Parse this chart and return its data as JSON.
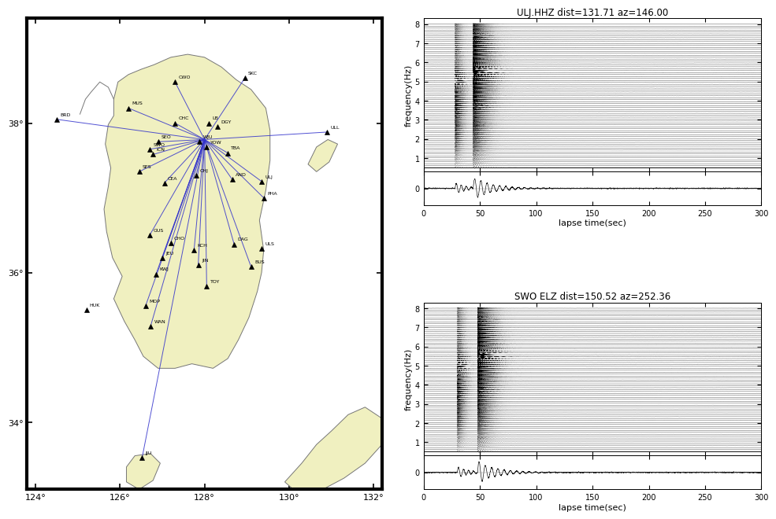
{
  "map_xlim": [
    123.8,
    132.2
  ],
  "map_ylim": [
    33.1,
    39.4
  ],
  "map_xticks": [
    124,
    126,
    128,
    130,
    132
  ],
  "map_yticks": [
    34,
    36,
    38
  ],
  "map_bg_color": "#f0f0c0",
  "land_color": "#f0f0c0",
  "epicenter": [
    128.0,
    37.78
  ],
  "stations": [
    {
      "name": "BRD",
      "lon": 124.5,
      "lat": 38.05
    },
    {
      "name": "MUS",
      "lon": 126.2,
      "lat": 38.2
    },
    {
      "name": "CWO",
      "lon": 127.3,
      "lat": 38.55
    },
    {
      "name": "SKC",
      "lon": 128.95,
      "lat": 38.6
    },
    {
      "name": "CHC",
      "lon": 127.3,
      "lat": 38.0
    },
    {
      "name": "LB",
      "lon": 128.1,
      "lat": 38.0
    },
    {
      "name": "DGY",
      "lon": 128.3,
      "lat": 37.95
    },
    {
      "name": "SEO",
      "lon": 126.9,
      "lat": 37.75
    },
    {
      "name": "SWO",
      "lon": 126.7,
      "lat": 37.65
    },
    {
      "name": "ICN",
      "lon": 126.78,
      "lat": 37.58
    },
    {
      "name": "WJU",
      "lon": 127.88,
      "lat": 37.75
    },
    {
      "name": "YOW",
      "lon": 128.05,
      "lat": 37.68
    },
    {
      "name": "TBA",
      "lon": 128.55,
      "lat": 37.6
    },
    {
      "name": "SES",
      "lon": 126.45,
      "lat": 37.35
    },
    {
      "name": "CEA",
      "lon": 127.05,
      "lat": 37.2
    },
    {
      "name": "CHJ",
      "lon": 127.8,
      "lat": 37.3
    },
    {
      "name": "AND",
      "lon": 128.65,
      "lat": 37.25
    },
    {
      "name": "ULJ",
      "lon": 129.35,
      "lat": 37.22
    },
    {
      "name": "PHA",
      "lon": 129.4,
      "lat": 37.0
    },
    {
      "name": "GUS",
      "lon": 126.7,
      "lat": 36.5
    },
    {
      "name": "CHO",
      "lon": 127.2,
      "lat": 36.4
    },
    {
      "name": "KCH",
      "lon": 127.75,
      "lat": 36.3
    },
    {
      "name": "DAG",
      "lon": 128.7,
      "lat": 36.38
    },
    {
      "name": "ULS",
      "lon": 129.35,
      "lat": 36.32
    },
    {
      "name": "JEU",
      "lon": 127.0,
      "lat": 36.2
    },
    {
      "name": "JIN",
      "lon": 127.85,
      "lat": 36.1
    },
    {
      "name": "BUS",
      "lon": 129.1,
      "lat": 36.08
    },
    {
      "name": "KWJ",
      "lon": 126.85,
      "lat": 35.98
    },
    {
      "name": "TOY",
      "lon": 128.05,
      "lat": 35.82
    },
    {
      "name": "HUK",
      "lon": 125.2,
      "lat": 35.5
    },
    {
      "name": "MOP",
      "lon": 126.6,
      "lat": 35.55
    },
    {
      "name": "WAN",
      "lon": 126.72,
      "lat": 35.28
    },
    {
      "name": "JJU",
      "lon": 126.52,
      "lat": 33.52
    },
    {
      "name": "ULL",
      "lon": 130.9,
      "lat": 37.88
    }
  ],
  "line_stations": [
    "BRD",
    "MUS",
    "CHC",
    "SEO",
    "SWO",
    "CEA",
    "CHJ",
    "GUS",
    "JEU",
    "KWJ",
    "MOP",
    "WAN",
    "JJU",
    "ULL",
    "YOW",
    "CHO",
    "KCH",
    "JIN",
    "TOY",
    "AND",
    "ULJ",
    "PHA",
    "BUS",
    "DAG",
    "TBA",
    "WJU",
    "ICN",
    "SES",
    "SKC",
    "CWO"
  ],
  "top_panel": {
    "title": "ULJ.HHZ dist=131.71 az=146.00",
    "ylabel": "frequency(Hz)",
    "xlabel": "lapse time(sec)",
    "xlim": [
      0,
      300
    ],
    "xticks": [
      0,
      50,
      100,
      150,
      200,
      250,
      300
    ],
    "n_traces": 75,
    "p_arrival": 28,
    "s_arrival": 44,
    "freq_min": 0.5,
    "freq_max": 8.0
  },
  "bot_panel": {
    "title": "SWO ELZ dist=150.52 az=252.36",
    "ylabel": "frequency(Hz)",
    "xlabel": "lapse time(sec)",
    "xlim": [
      0,
      300
    ],
    "xticks": [
      0,
      50,
      100,
      150,
      200,
      250,
      300
    ],
    "n_traces": 75,
    "p_arrival": 30,
    "s_arrival": 48,
    "freq_min": 0.5,
    "freq_max": 8.0
  }
}
